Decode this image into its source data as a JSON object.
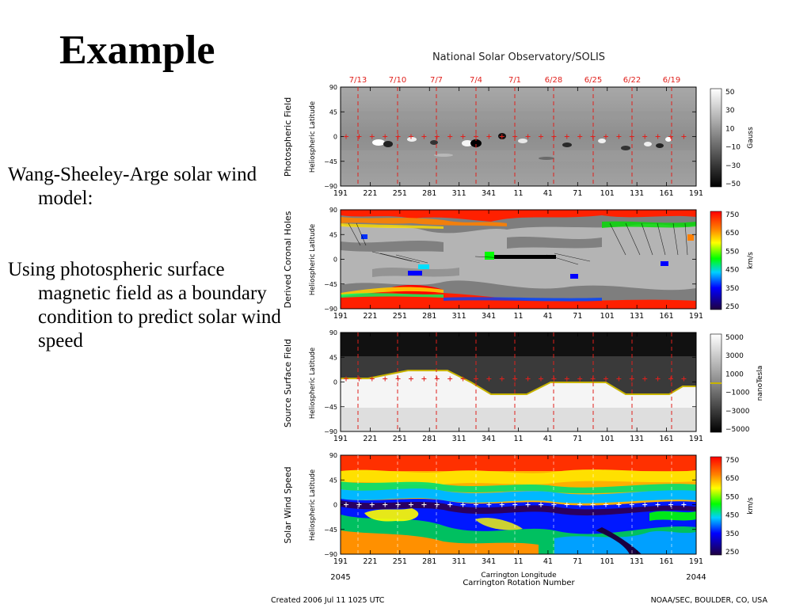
{
  "slide": {
    "title": "Example",
    "bullets": [
      "Wang-Sheeley-Arge solar wind model:",
      "Using photospheric surface magnetic field as a boundary condition to predict solar wind speed"
    ]
  },
  "figure": {
    "header": "National Solar Observatory/SOLIS",
    "date_labels": [
      "7/13",
      "7/10",
      "7/7",
      "7/4",
      "7/1",
      "6/28",
      "6/25",
      "6/22",
      "6/19"
    ],
    "lon_ticks": [
      "191",
      "221",
      "251",
      "281",
      "311",
      "341",
      "11",
      "41",
      "71",
      "101",
      "131",
      "161",
      "191"
    ],
    "lat_ticks": [
      "90",
      "45",
      "0",
      "−45",
      "−90"
    ],
    "lat_label": "Heliospheric Latitude",
    "panels": [
      {
        "title": "Photospheric Field",
        "cbar_unit": "Gauss",
        "cbar_ticks": [
          "50",
          "30",
          "10",
          "−10",
          "−30",
          "−50"
        ]
      },
      {
        "title": "Derived Coronal Holes",
        "cbar_unit": "km/s",
        "cbar_ticks": [
          "750",
          "650",
          "550",
          "450",
          "350",
          "250"
        ]
      },
      {
        "title": "Source Surface Field",
        "cbar_unit": "nanoTesla",
        "cbar_ticks": [
          "5000",
          "3000",
          "1000",
          "−1000",
          "−3000",
          "−5000"
        ]
      },
      {
        "title": "Solar Wind Speed",
        "cbar_unit": "km/s",
        "cbar_ticks": [
          "750",
          "650",
          "550",
          "450",
          "350",
          "250"
        ]
      }
    ],
    "xlabel_lon": "Carrington Longitude",
    "xlabel_rot": "Carrington Rotation Number",
    "rot_left": "2045",
    "rot_right": "2044",
    "footer_left": "Created 2006 Jul 11 1025 UTC",
    "footer_right": "NOAA/SEC, BOULDER, CO, USA",
    "colors": {
      "marker": "#e0201c",
      "rainbow": [
        "#7a0000",
        "#ff0000",
        "#ff8000",
        "#ffff00",
        "#00ff00",
        "#00c8ff",
        "#0000ff",
        "#000060"
      ]
    }
  }
}
